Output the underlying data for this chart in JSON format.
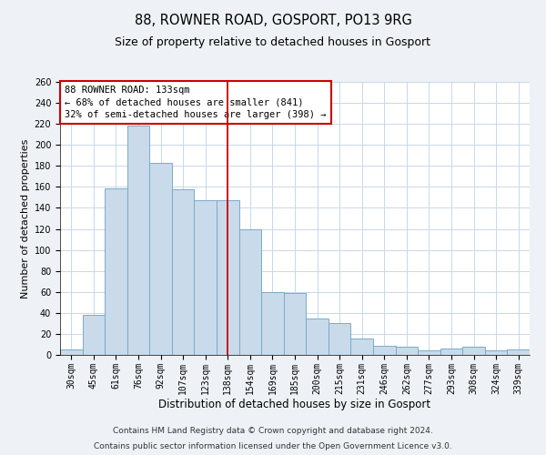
{
  "title": "88, ROWNER ROAD, GOSPORT, PO13 9RG",
  "subtitle": "Size of property relative to detached houses in Gosport",
  "xlabel": "Distribution of detached houses by size in Gosport",
  "ylabel": "Number of detached properties",
  "categories": [
    "30sqm",
    "45sqm",
    "61sqm",
    "76sqm",
    "92sqm",
    "107sqm",
    "123sqm",
    "138sqm",
    "154sqm",
    "169sqm",
    "185sqm",
    "200sqm",
    "215sqm",
    "231sqm",
    "246sqm",
    "262sqm",
    "277sqm",
    "293sqm",
    "308sqm",
    "324sqm",
    "339sqm"
  ],
  "values": [
    5,
    38,
    159,
    218,
    183,
    158,
    147,
    147,
    120,
    60,
    59,
    35,
    30,
    16,
    9,
    8,
    4,
    6,
    8,
    4,
    5
  ],
  "bar_color": "#c9daea",
  "bar_edge_color": "#7aaac8",
  "vline_x_index": 7,
  "vline_color": "#cc0000",
  "annotation_box_text": "88 ROWNER ROAD: 133sqm\n← 68% of detached houses are smaller (841)\n32% of semi-detached houses are larger (398) →",
  "annotation_box_color": "#cc0000",
  "ylim": [
    0,
    260
  ],
  "yticks": [
    0,
    20,
    40,
    60,
    80,
    100,
    120,
    140,
    160,
    180,
    200,
    220,
    240,
    260
  ],
  "footnote1": "Contains HM Land Registry data © Crown copyright and database right 2024.",
  "footnote2": "Contains public sector information licensed under the Open Government Licence v3.0.",
  "background_color": "#eef2f7",
  "plot_bg_color": "#ffffff",
  "grid_color": "#c8d8e8",
  "title_fontsize": 10.5,
  "subtitle_fontsize": 9,
  "xlabel_fontsize": 8.5,
  "ylabel_fontsize": 8,
  "tick_fontsize": 7,
  "footnote_fontsize": 6.5,
  "ann_fontsize": 7.5
}
